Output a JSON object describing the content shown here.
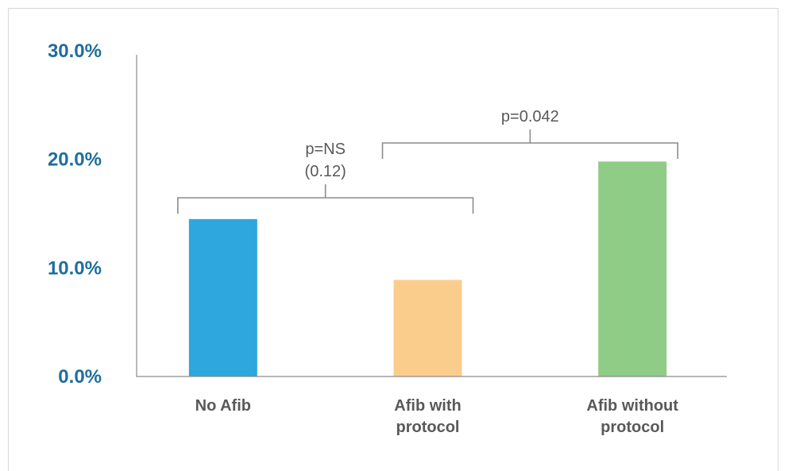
{
  "chart_data": {
    "type": "bar",
    "categories": [
      [
        "No Afib"
      ],
      [
        "Afib with",
        "protocol"
      ],
      [
        "Afib without",
        "protocol"
      ]
    ],
    "values": [
      14.5,
      8.9,
      19.8
    ],
    "colors": [
      "#2ea6de",
      "#fbcd8c",
      "#8fcc86"
    ],
    "ylim": [
      0,
      30
    ],
    "yticks": [
      0,
      10,
      20,
      30
    ],
    "ytick_labels": [
      "0.0%",
      "10.0%",
      "20.0%",
      "30.0%"
    ],
    "grid": false,
    "legend": "none",
    "annotations": [
      {
        "from": 0,
        "to": 1,
        "lines": [
          "p=NS",
          "(0.12)"
        ]
      },
      {
        "from": 1,
        "to": 2,
        "lines": [
          "p=0.042"
        ]
      }
    ]
  }
}
